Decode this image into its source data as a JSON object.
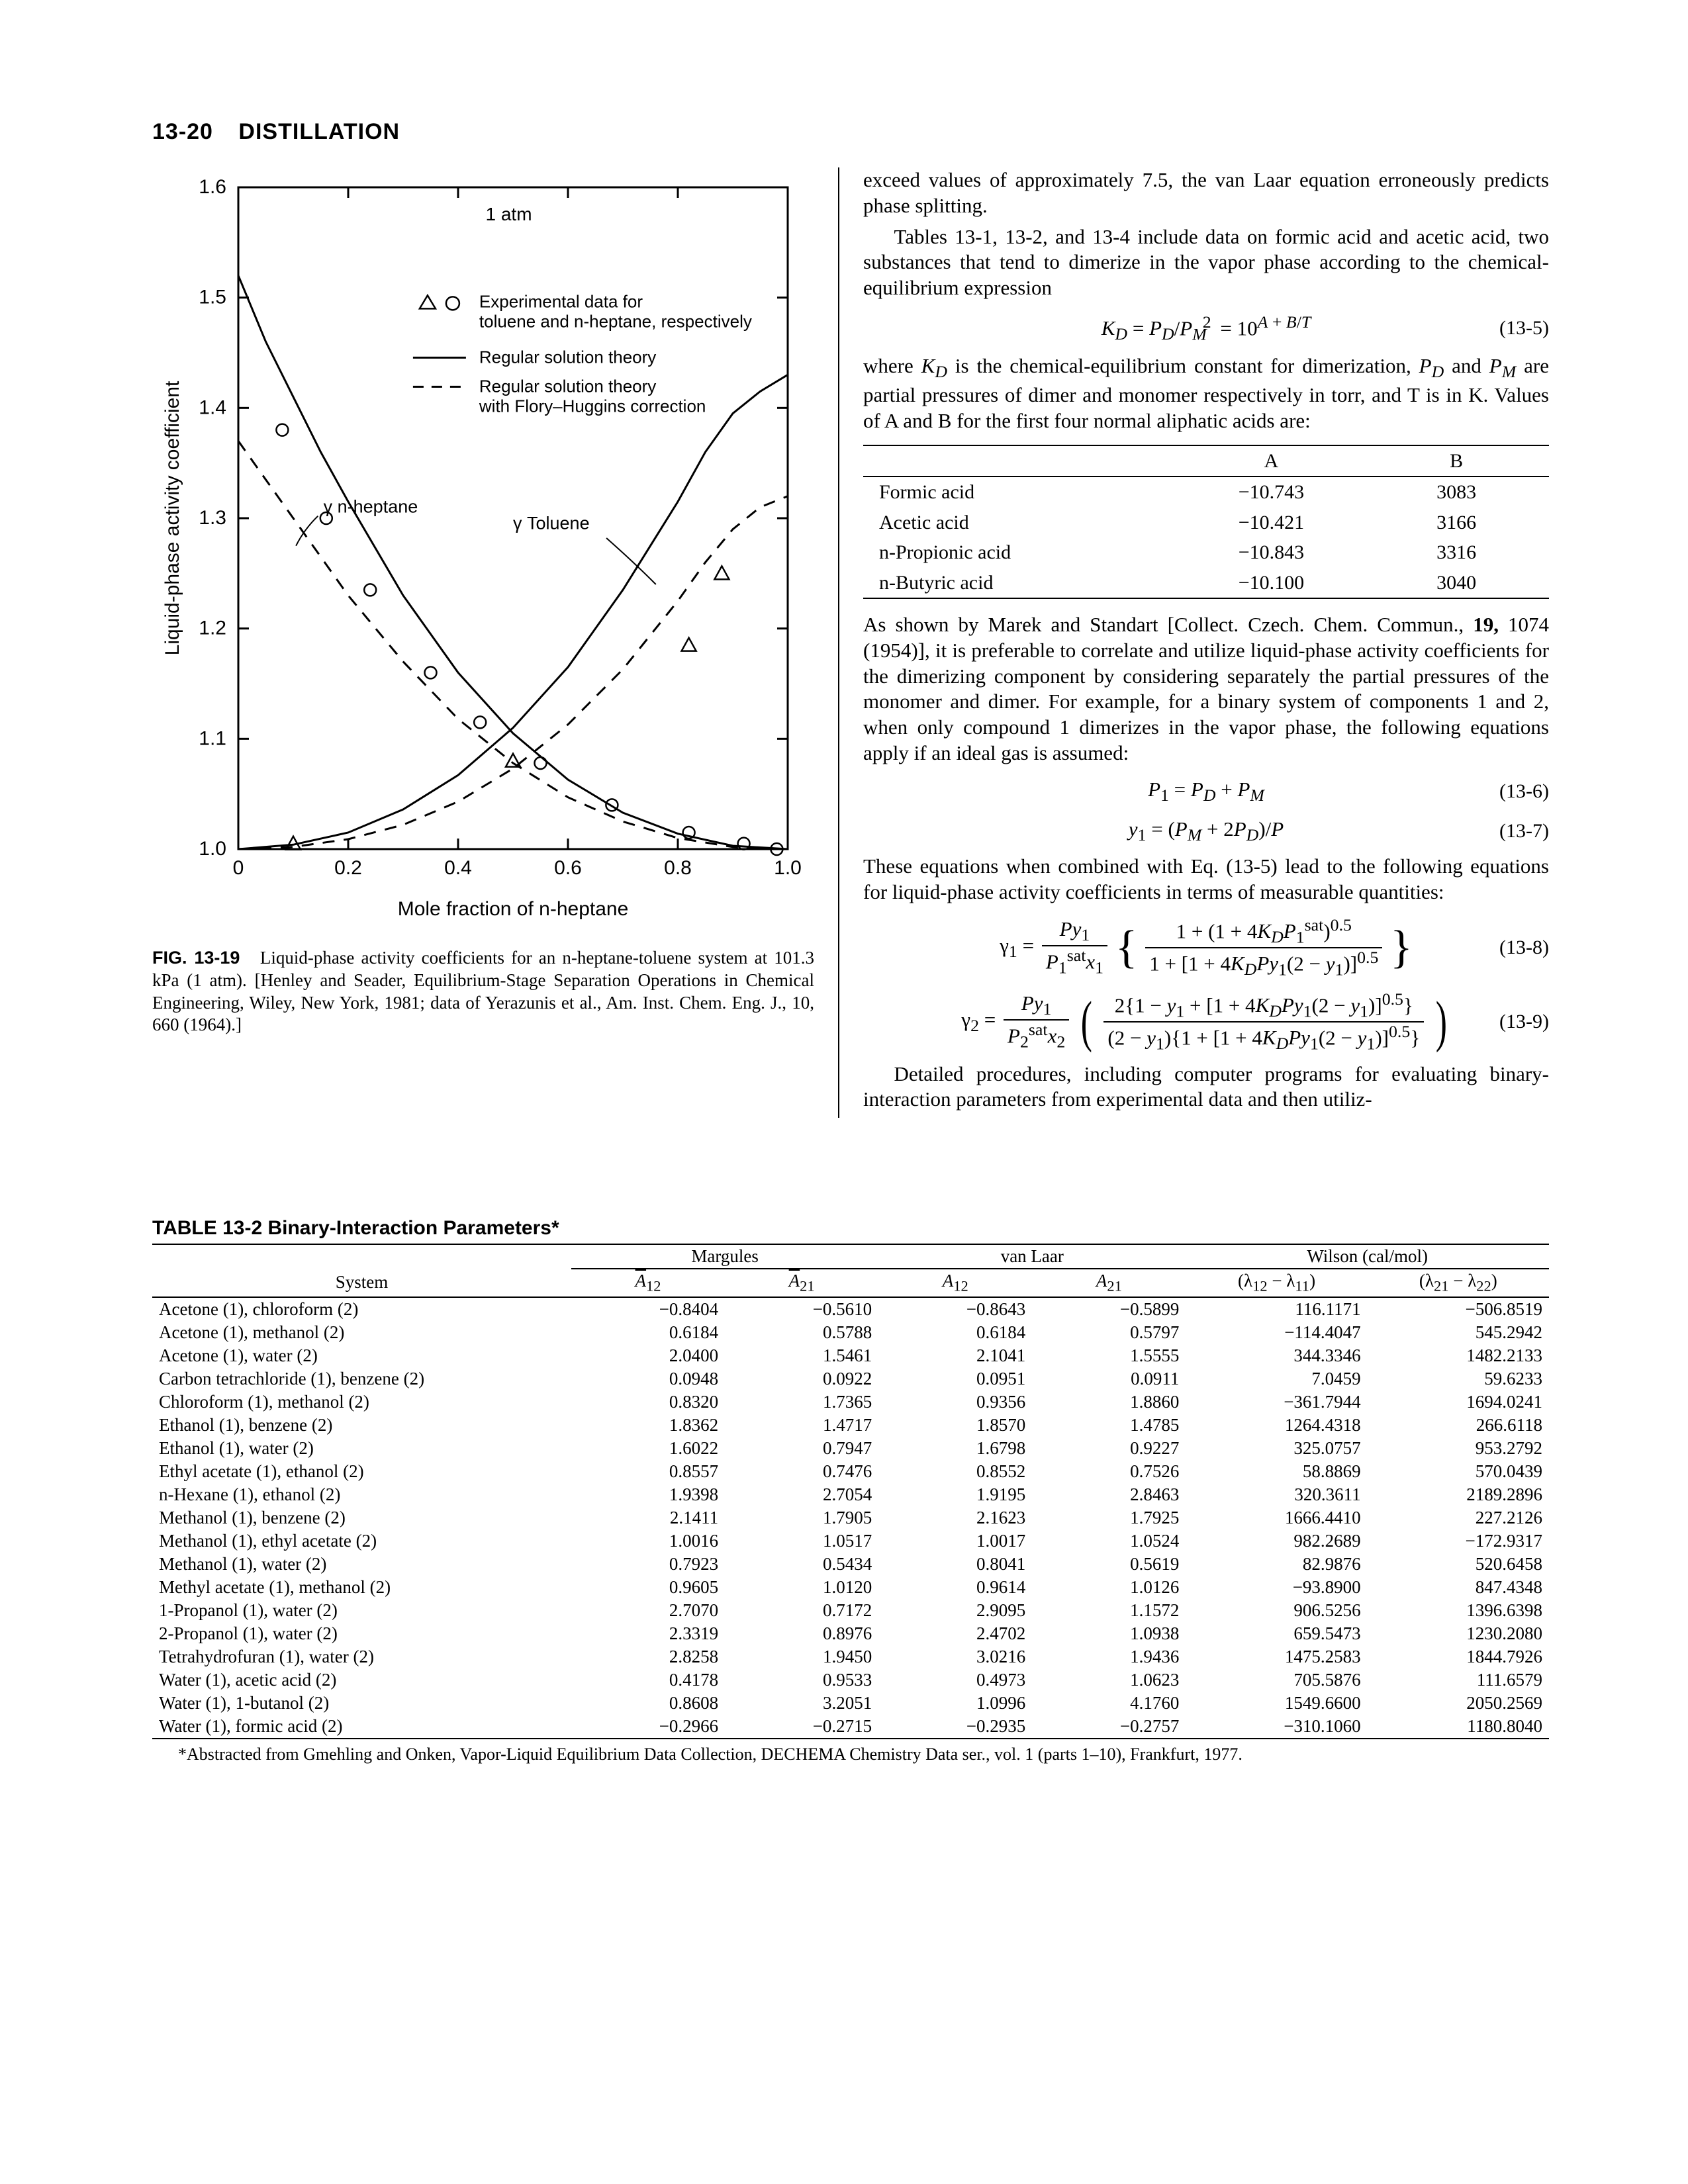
{
  "page": {
    "number": "13-20",
    "title": "DISTILLATION"
  },
  "figure": {
    "label": "FIG. 13-19",
    "caption": "Liquid-phase activity coefficients for an n-heptane-toluene system at 101.3 kPa (1 atm). [Henley and Seader, Equilibrium-Stage Separation Operations in Chemical Engineering, Wiley, New York, 1981; data of Yerazunis et al., Am. Inst. Chem. Eng. J., 10, 660 (1964).]",
    "atm_label": "1 atm",
    "legend": {
      "expt": "Experimental data for\ntoluene and n-heptane, respectively",
      "reg": "Regular solution theory",
      "regfh": "Regular solution theory\nwith Flory–Huggins correction"
    },
    "xaxis": {
      "label": "Mole fraction of n-heptane",
      "lim": [
        0,
        1
      ],
      "ticks": [
        0,
        0.2,
        0.4,
        0.6,
        0.8,
        1.0
      ]
    },
    "yaxis": {
      "label": "Liquid-phase activity coefficient",
      "lim": [
        1.0,
        1.6
      ],
      "ticks": [
        1.0,
        1.1,
        1.2,
        1.3,
        1.4,
        1.5,
        1.6
      ]
    },
    "curve_labels": {
      "heptane": "γ n-heptane",
      "toluene": "γ Toluene"
    },
    "colors": {
      "axis": "#000000",
      "dash": "#000000",
      "solid": "#000000",
      "marker": "#000000",
      "bg": "#ffffff"
    },
    "linewidth_solid": 3,
    "linewidth_dash": 3,
    "series": {
      "heptane_solid": {
        "x": [
          0.0,
          0.05,
          0.1,
          0.15,
          0.2,
          0.3,
          0.4,
          0.5,
          0.6,
          0.7,
          0.8,
          0.9,
          1.0
        ],
        "y": [
          1.52,
          1.46,
          1.41,
          1.36,
          1.315,
          1.23,
          1.16,
          1.105,
          1.063,
          1.033,
          1.014,
          1.003,
          1.0
        ]
      },
      "heptane_dash": {
        "x": [
          0.0,
          0.05,
          0.1,
          0.15,
          0.2,
          0.3,
          0.4,
          0.5,
          0.6,
          0.7,
          0.8,
          0.9,
          1.0
        ],
        "y": [
          1.37,
          1.335,
          1.3,
          1.265,
          1.23,
          1.17,
          1.118,
          1.078,
          1.047,
          1.025,
          1.01,
          1.002,
          1.0
        ]
      },
      "toluene_solid": {
        "x": [
          0.0,
          0.1,
          0.2,
          0.3,
          0.4,
          0.5,
          0.6,
          0.7,
          0.8,
          0.85,
          0.9,
          0.95,
          1.0
        ],
        "y": [
          1.0,
          1.004,
          1.015,
          1.036,
          1.067,
          1.11,
          1.165,
          1.235,
          1.315,
          1.36,
          1.395,
          1.415,
          1.43
        ]
      },
      "toluene_dash": {
        "x": [
          0.0,
          0.1,
          0.2,
          0.3,
          0.4,
          0.5,
          0.6,
          0.7,
          0.8,
          0.85,
          0.9,
          0.95,
          1.0
        ],
        "y": [
          1.0,
          1.002,
          1.009,
          1.022,
          1.043,
          1.073,
          1.113,
          1.163,
          1.225,
          1.26,
          1.29,
          1.31,
          1.32
        ]
      }
    },
    "markers": {
      "triangles": {
        "x": [
          0.1,
          0.5,
          0.82,
          0.88
        ],
        "y": [
          1.005,
          1.08,
          1.185,
          1.25
        ]
      },
      "circles": {
        "x": [
          0.08,
          0.16,
          0.24,
          0.35,
          0.44,
          0.55,
          0.68,
          0.82,
          0.92,
          0.98
        ],
        "y": [
          1.38,
          1.3,
          1.235,
          1.16,
          1.115,
          1.078,
          1.04,
          1.015,
          1.005,
          1.0
        ]
      }
    }
  },
  "text": {
    "p1": "exceed values of approximately 7.5, the van Laar equation erroneously predicts phase splitting.",
    "p2": "Tables 13-1, 13-2, and 13-4 include data on formic acid and acetic acid, two substances that tend to dimerize in the vapor phase according to the chemical-equilibrium expression",
    "p3a": "where ",
    "p3b": " is the chemical-equilibrium constant for dimerization, ",
    "p3c": " and ",
    "p3d": " are partial pressures of dimer and monomer respectively in torr, and T is in K. Values of A and B for the first four normal aliphatic acids are:",
    "p4a": "As shown by Marek and Standart [Collect. Czech. Chem. Commun., ",
    "p4b": "19,",
    "p4c": " 1074 (1954)], it is preferable to correlate and utilize liquid-phase activity coefficients for the dimerizing component by considering separately the partial pressures of the monomer and dimer. For example, for a binary system of components 1 and 2, when only compound 1 dimerizes in the vapor phase, the following equations apply if an ideal gas is assumed:",
    "p5": "These equations when combined with Eq. (13-5) lead to the following equations for liquid-phase activity coefficients in terms of measurable quantities:",
    "p6": "Detailed procedures, including computer programs for evaluating binary-interaction parameters from experimental data and then utiliz-"
  },
  "eq": {
    "13-5": {
      "num": "(13-5)",
      "text": "K_D = P_D / P_M^2 = 10^{A + B/T}"
    },
    "13-6": {
      "num": "(13-6)",
      "text": "P_1 = P_D + P_M"
    },
    "13-7": {
      "num": "(13-7)",
      "text": "y_1 = (P_M + 2P_D)/P"
    },
    "13-8": {
      "num": "(13-8)"
    },
    "13-9": {
      "num": "(13-9)"
    }
  },
  "acid_table": {
    "header": [
      "",
      "A",
      "B"
    ],
    "rows": [
      [
        "Formic acid",
        "−10.743",
        "3083"
      ],
      [
        "Acetic acid",
        "−10.421",
        "3166"
      ],
      [
        "n-Propionic acid",
        "−10.843",
        "3316"
      ],
      [
        "n-Butyric acid",
        "−10.100",
        "3040"
      ]
    ]
  },
  "table132": {
    "caption": "TABLE 13-2   Binary-Interaction Parameters*",
    "groups": [
      "Margules",
      "van Laar",
      "Wilson (cal/mol)"
    ],
    "subheaders": [
      "System",
      "A̅₁₂",
      "A̅₂₁",
      "A₁₂",
      "A₂₁",
      "(λ₁₂ − λ₁₁)",
      "(λ₂₁ − λ₂₂)"
    ],
    "rows": [
      [
        "Acetone (1), chloroform (2)",
        "−0.8404",
        "−0.5610",
        "−0.8643",
        "−0.5899",
        "116.1171",
        "−506.8519"
      ],
      [
        "Acetone (1), methanol (2)",
        "0.6184",
        "0.5788",
        "0.6184",
        "0.5797",
        "−114.4047",
        "545.2942"
      ],
      [
        "Acetone (1), water (2)",
        "2.0400",
        "1.5461",
        "2.1041",
        "1.5555",
        "344.3346",
        "1482.2133"
      ],
      [
        "Carbon tetrachloride (1), benzene (2)",
        "0.0948",
        "0.0922",
        "0.0951",
        "0.0911",
        "7.0459",
        "59.6233"
      ],
      [
        "Chloroform (1), methanol (2)",
        "0.8320",
        "1.7365",
        "0.9356",
        "1.8860",
        "−361.7944",
        "1694.0241"
      ],
      [
        "Ethanol (1), benzene (2)",
        "1.8362",
        "1.4717",
        "1.8570",
        "1.4785",
        "1264.4318",
        "266.6118"
      ],
      [
        "Ethanol (1), water (2)",
        "1.6022",
        "0.7947",
        "1.6798",
        "0.9227",
        "325.0757",
        "953.2792"
      ],
      [
        "Ethyl acetate (1), ethanol (2)",
        "0.8557",
        "0.7476",
        "0.8552",
        "0.7526",
        "58.8869",
        "570.0439"
      ],
      [
        "n-Hexane (1), ethanol (2)",
        "1.9398",
        "2.7054",
        "1.9195",
        "2.8463",
        "320.3611",
        "2189.2896"
      ],
      [
        "Methanol (1), benzene (2)",
        "2.1411",
        "1.7905",
        "2.1623",
        "1.7925",
        "1666.4410",
        "227.2126"
      ],
      [
        "Methanol (1), ethyl acetate (2)",
        "1.0016",
        "1.0517",
        "1.0017",
        "1.0524",
        "982.2689",
        "−172.9317"
      ],
      [
        "Methanol (1), water (2)",
        "0.7923",
        "0.5434",
        "0.8041",
        "0.5619",
        "82.9876",
        "520.6458"
      ],
      [
        "Methyl acetate (1), methanol (2)",
        "0.9605",
        "1.0120",
        "0.9614",
        "1.0126",
        "−93.8900",
        "847.4348"
      ],
      [
        "1-Propanol (1), water (2)",
        "2.7070",
        "0.7172",
        "2.9095",
        "1.1572",
        "906.5256",
        "1396.6398"
      ],
      [
        "2-Propanol (1), water (2)",
        "2.3319",
        "0.8976",
        "2.4702",
        "1.0938",
        "659.5473",
        "1230.2080"
      ],
      [
        "Tetrahydrofuran (1), water (2)",
        "2.8258",
        "1.9450",
        "3.0216",
        "1.9436",
        "1475.2583",
        "1844.7926"
      ],
      [
        "Water (1), acetic acid (2)",
        "0.4178",
        "0.9533",
        "0.4973",
        "1.0623",
        "705.5876",
        "111.6579"
      ],
      [
        "Water (1), 1-butanol (2)",
        "0.8608",
        "3.2051",
        "1.0996",
        "4.1760",
        "1549.6600",
        "2050.2569"
      ],
      [
        "Water (1), formic acid (2)",
        "−0.2966",
        "−0.2715",
        "−0.2935",
        "−0.2757",
        "−310.1060",
        "1180.8040"
      ]
    ],
    "footnote": "*Abstracted from Gmehling and Onken, Vapor-Liquid Equilibrium Data Collection, DECHEMA Chemistry Data ser., vol. 1 (parts 1–10), Frankfurt, 1977."
  }
}
